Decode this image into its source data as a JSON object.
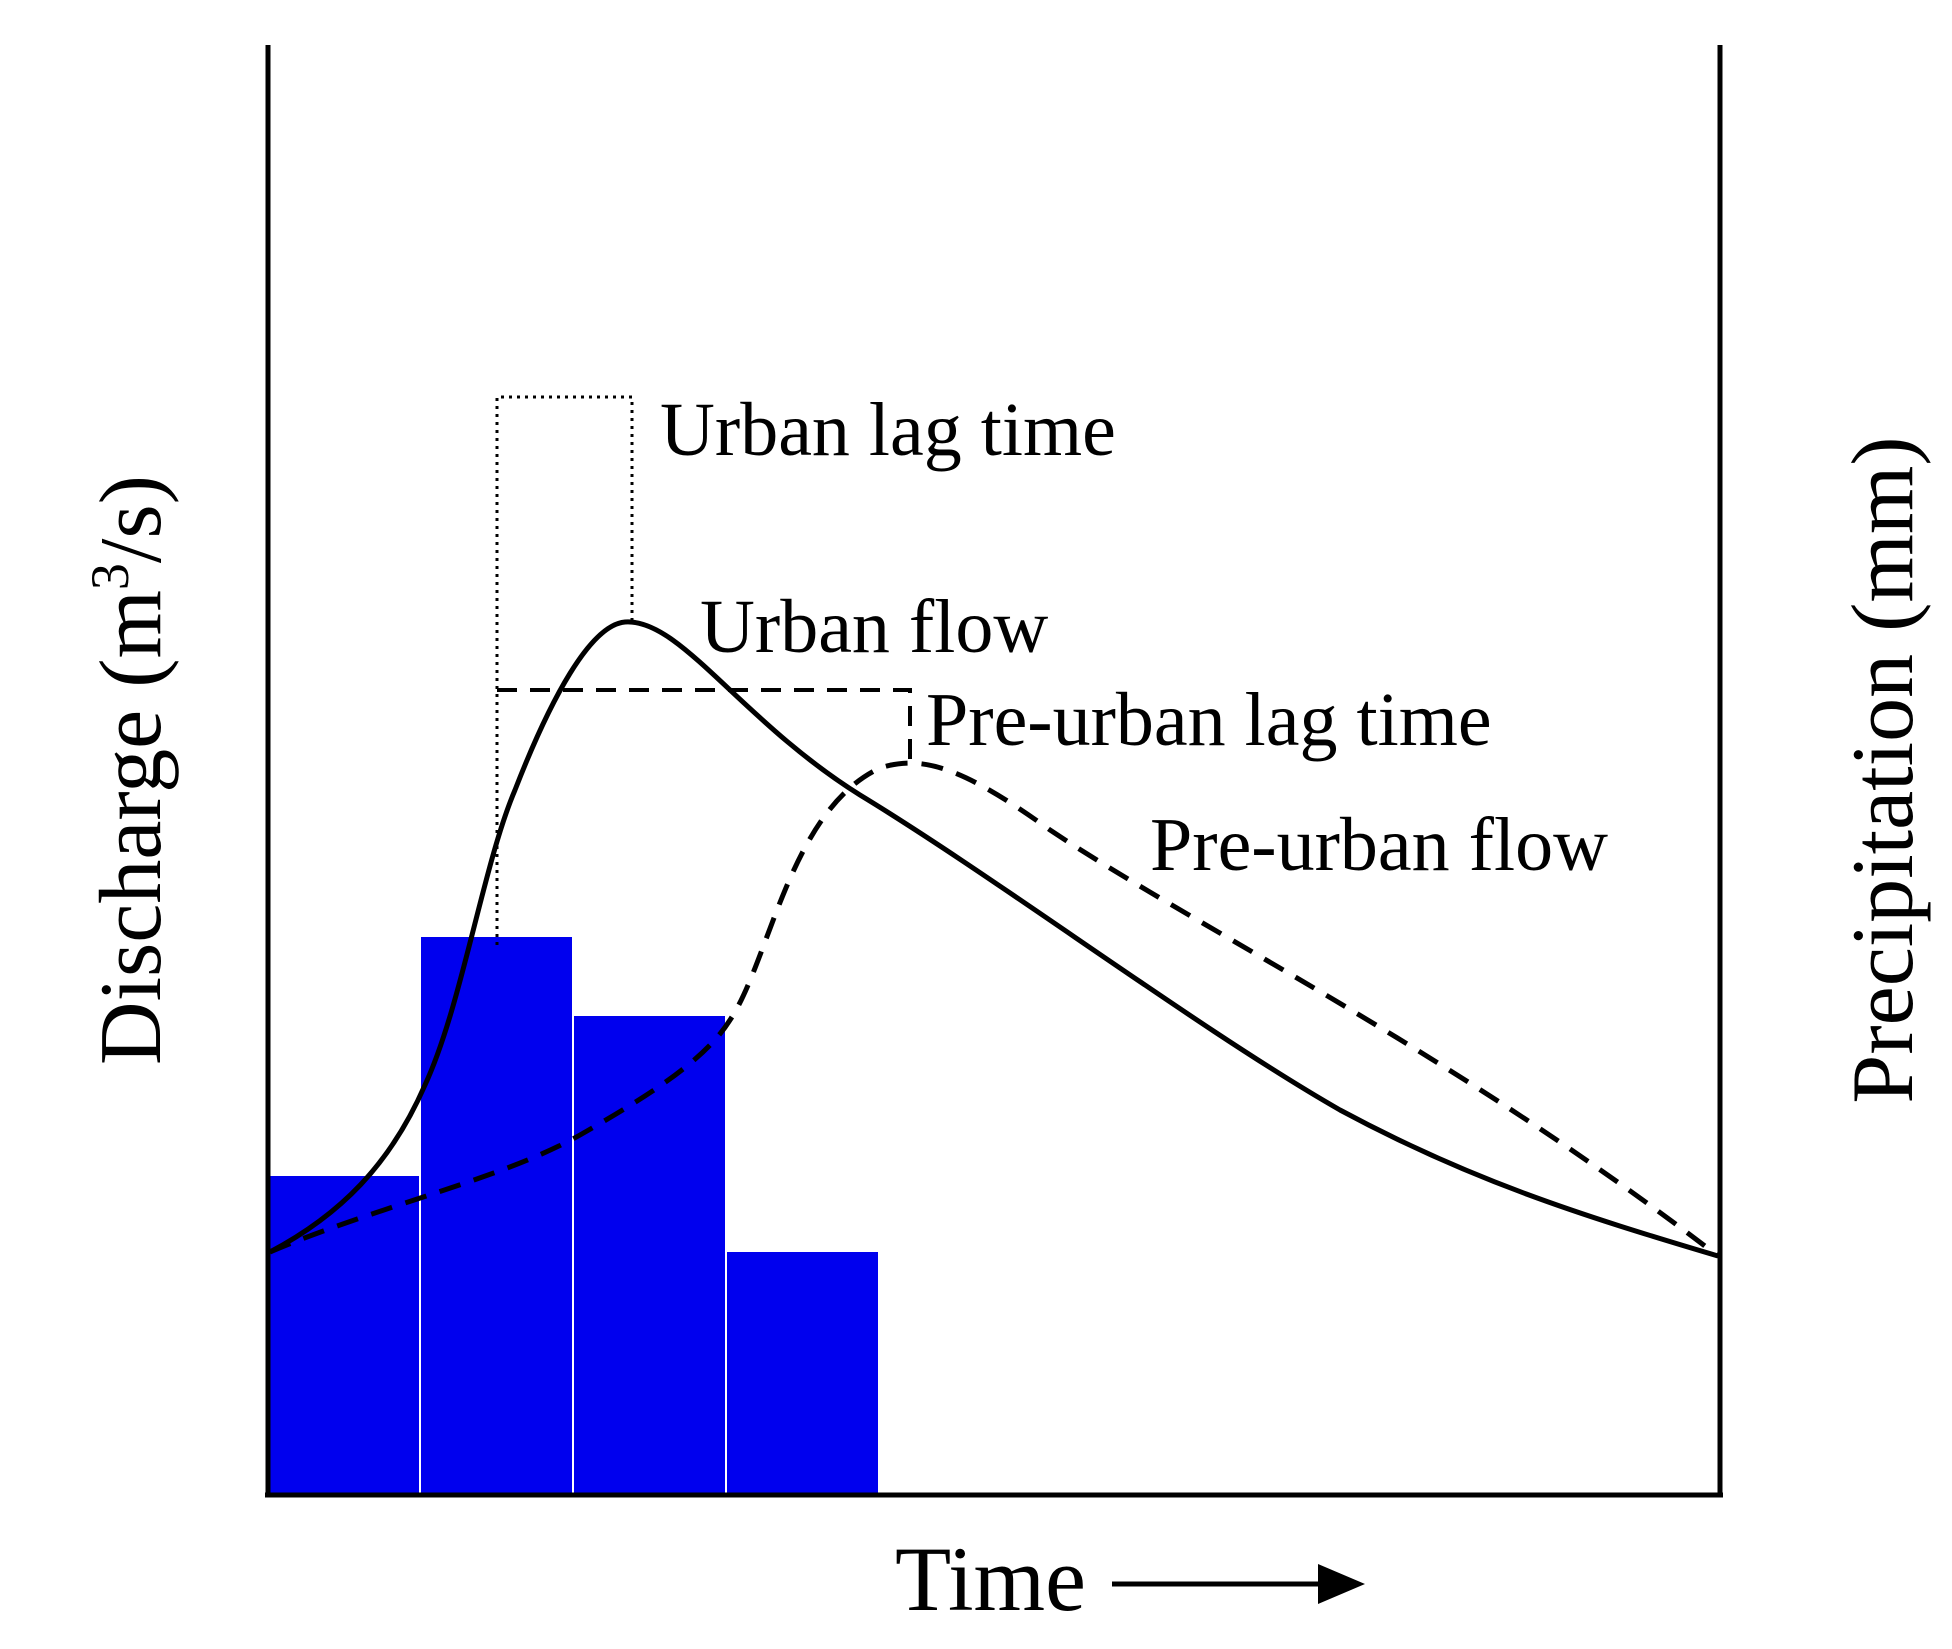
{
  "labels": {
    "y_left": "Discharge (m",
    "y_left_sup": "3",
    "y_left_tail": "/s)",
    "y_right": "Precipitation (mm)",
    "x": "Time",
    "urban_lag_time": "Urban lag time",
    "urban_flow": "Urban flow",
    "pre_urban_lag_time": "Pre-urban lag time",
    "pre_urban_flow": "Pre-urban flow"
  },
  "colors": {
    "precipitation_bars": "#0000ee",
    "curves": "#000000"
  },
  "precipitation": {
    "relative_intensity": [
      0.44,
      0.75,
      0.64,
      0.33
    ]
  }
}
